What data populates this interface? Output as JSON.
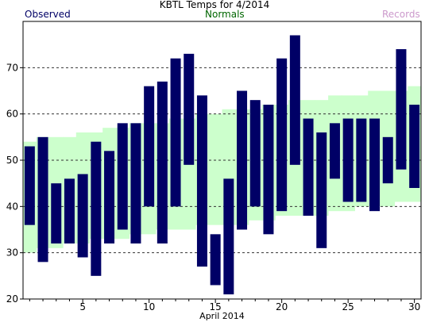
{
  "chart_data": {
    "type": "bar",
    "title": "KBTL Temps for 4/2014",
    "xlabel": "April 2014",
    "ylabel": "",
    "xlim": [
      0.5,
      30.5
    ],
    "ylim": [
      20,
      80
    ],
    "x_ticks": [
      5,
      10,
      15,
      20,
      25,
      30
    ],
    "y_ticks": [
      20,
      30,
      40,
      50,
      60,
      70
    ],
    "grid": "horizontal dashed at 30, 40, 50, 60, 70",
    "legend": [
      {
        "name": "Observed",
        "color": "#000066",
        "position": "top-left"
      },
      {
        "name": "Normals",
        "color": "#006600",
        "position": "top-center"
      },
      {
        "name": "Records",
        "color": "#cc99cc",
        "position": "top-right"
      }
    ],
    "series": [
      {
        "name": "Records",
        "color": "#cc99cc",
        "days": [],
        "high": [],
        "low": []
      },
      {
        "name": "Normals",
        "color": "#ccffcc",
        "days": [
          1,
          2,
          3,
          4,
          5,
          6,
          7,
          8,
          9,
          10,
          11,
          12,
          13,
          14,
          15,
          16,
          17,
          18,
          19,
          20,
          21,
          22,
          23,
          24,
          25,
          26,
          27,
          28,
          29,
          30
        ],
        "high": [
          54,
          55,
          55,
          55,
          56,
          56,
          57,
          57,
          58,
          58,
          58,
          59,
          59,
          60,
          60,
          61,
          61,
          61,
          62,
          62,
          63,
          63,
          63,
          64,
          64,
          64,
          65,
          65,
          65,
          66
        ],
        "low": [
          30,
          31,
          31,
          32,
          32,
          33,
          33,
          33,
          34,
          34,
          35,
          35,
          35,
          36,
          36,
          36,
          36,
          37,
          37,
          38,
          38,
          38,
          38,
          39,
          39,
          40,
          40,
          40,
          41,
          41
        ]
      },
      {
        "name": "Observed",
        "color": "#000066",
        "days": [
          1,
          2,
          3,
          4,
          5,
          6,
          7,
          8,
          9,
          10,
          11,
          12,
          13,
          14,
          15,
          16,
          17,
          18,
          19,
          20,
          21,
          22,
          23,
          24,
          25,
          26,
          27,
          28,
          29,
          30
        ],
        "high": [
          53,
          55,
          45,
          46,
          47,
          54,
          52,
          58,
          58,
          66,
          67,
          72,
          73,
          64,
          34,
          46,
          65,
          63,
          62,
          72,
          77,
          59,
          56,
          58,
          59,
          59,
          59,
          55,
          74,
          62
        ],
        "low": [
          36,
          28,
          32,
          32,
          29,
          25,
          32,
          35,
          32,
          40,
          32,
          40,
          49,
          27,
          23,
          21,
          35,
          40,
          34,
          39,
          49,
          38,
          31,
          46,
          41,
          41,
          39,
          45,
          48,
          44
        ]
      }
    ]
  }
}
